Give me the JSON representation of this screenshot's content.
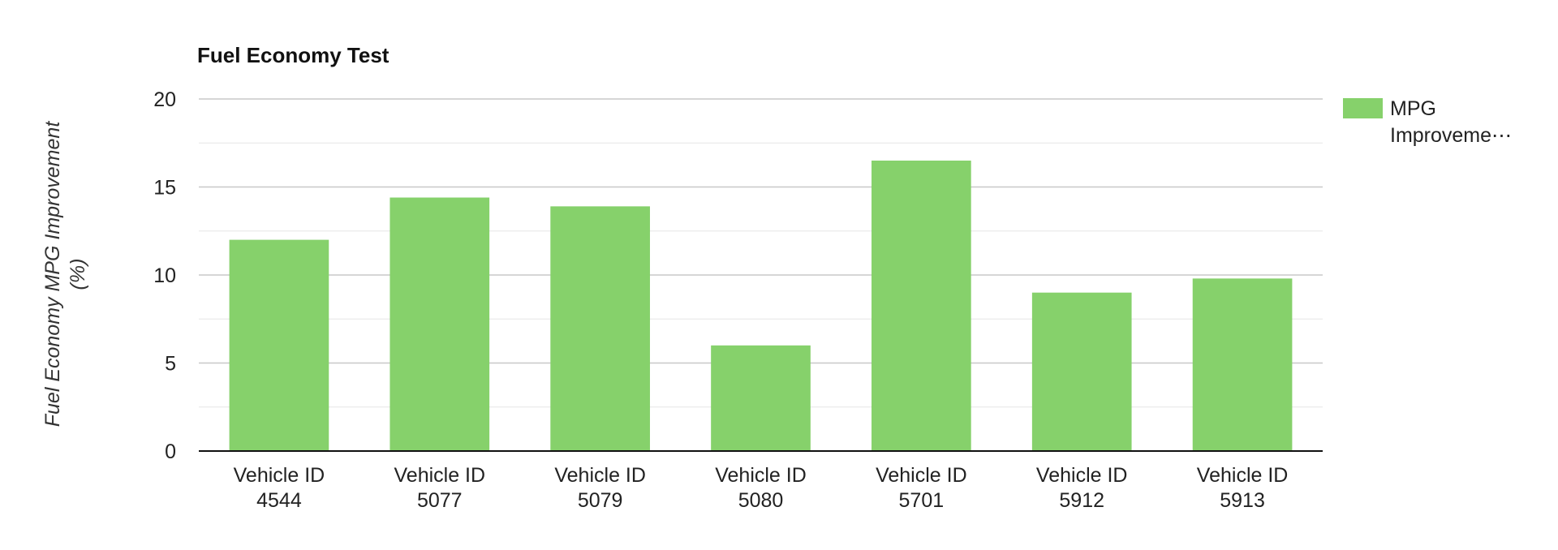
{
  "chart_data": {
    "type": "bar",
    "title": "Fuel Economy Test",
    "xlabel": "",
    "ylabel": "Fuel Economy MPG Improvement (%)",
    "ylabel_lines": [
      "Fuel Economy MPG Improvement",
      "(%)"
    ],
    "categories": [
      [
        "Vehicle ID",
        "4544"
      ],
      [
        "Vehicle ID",
        "5077"
      ],
      [
        "Vehicle ID",
        "5079"
      ],
      [
        "Vehicle ID",
        "5080"
      ],
      [
        "Vehicle ID",
        "5701"
      ],
      [
        "Vehicle ID",
        "5912"
      ],
      [
        "Vehicle ID",
        "5913"
      ]
    ],
    "series": [
      {
        "name": "MPG Improvement (%)",
        "legend_lines": [
          "MPG",
          "Improveme⋯"
        ],
        "color": "#86d16b",
        "values": [
          12.0,
          14.4,
          13.9,
          6.0,
          16.5,
          9.0,
          9.8
        ]
      }
    ],
    "ylim": [
      0,
      20
    ],
    "yticks": [
      0,
      5,
      10,
      15,
      20
    ],
    "minor_gridlines": true,
    "grid": true,
    "legend_position": "right",
    "colors": {
      "bar": "#86d16b",
      "major_grid": "#c8c8c8",
      "minor_grid": "#e6e6e6",
      "axis": "#111111"
    }
  }
}
